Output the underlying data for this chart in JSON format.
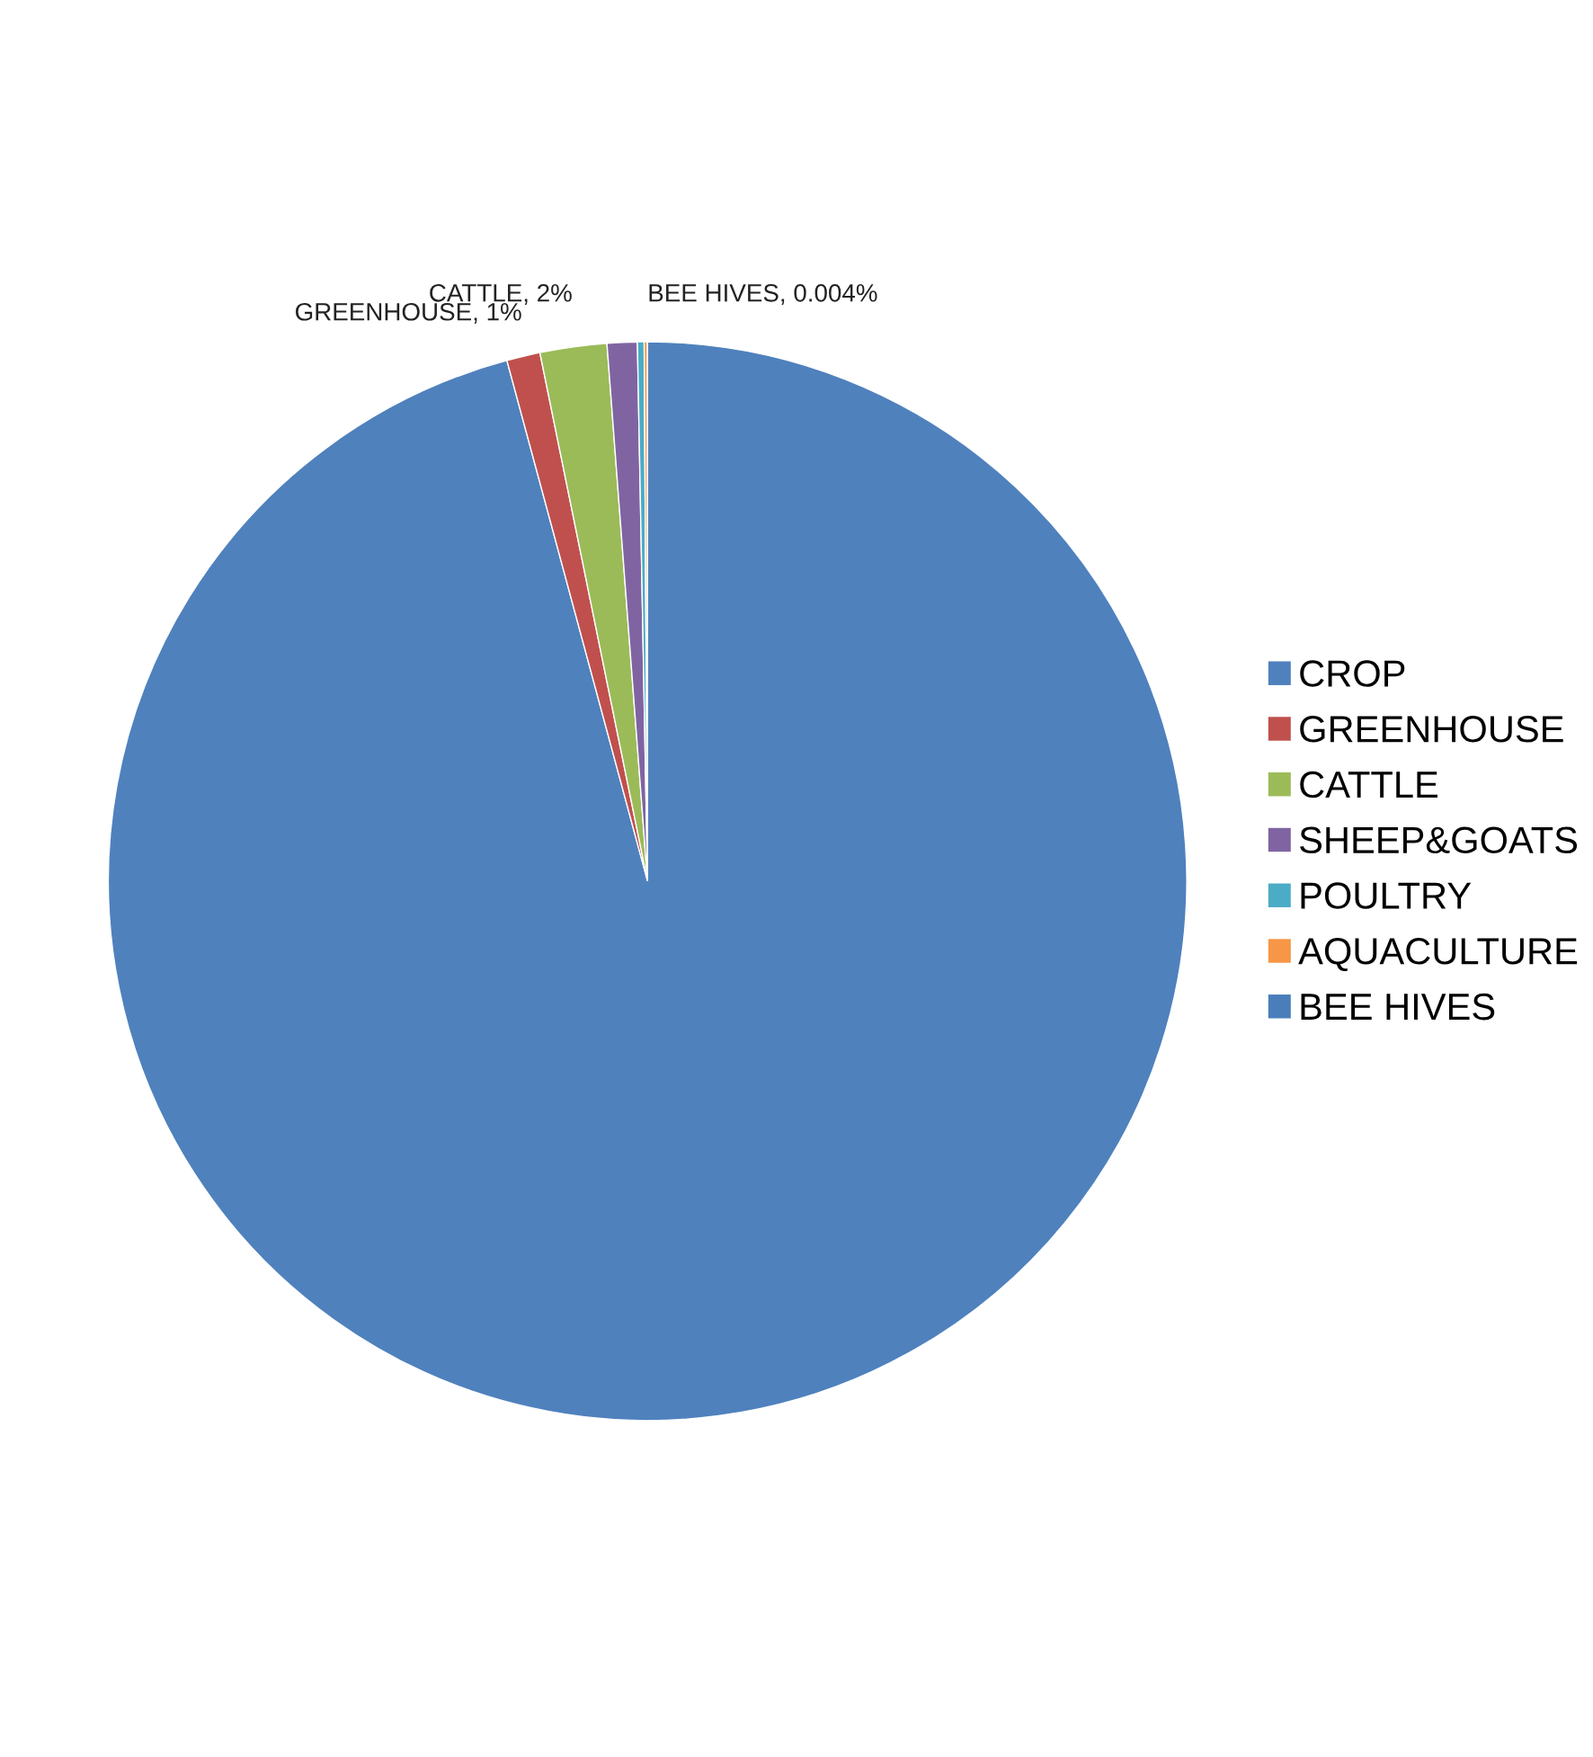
{
  "chart_data": {
    "type": "pie",
    "categories": [
      "CROP",
      "GREENHOUSE",
      "CATTLE",
      "SHEEP&GOATS",
      "POULTRY",
      "AQUACULTURE",
      "BEE HIVES"
    ],
    "values": [
      95.8,
      1,
      2,
      0.9,
      0.2,
      0.096,
      0.004
    ],
    "colors": [
      "#4f81bd",
      "#c0504d",
      "#9bbb59",
      "#8064a2",
      "#4bacc6",
      "#f79646",
      "#4a7ebb"
    ],
    "value_labels": [
      null,
      "GREENHOUSE, 1%",
      "CATTLE, 2%",
      null,
      null,
      null,
      "BEE HIVES, 0.004%"
    ],
    "legend": "right"
  }
}
